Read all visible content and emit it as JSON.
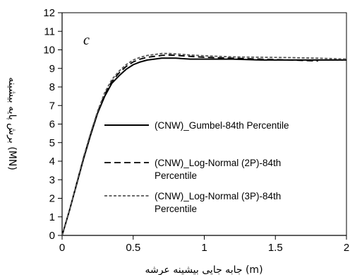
{
  "chart_data": {
    "type": "line",
    "title": "",
    "panel_label": "c",
    "xlabel": "جابه جایی بیشینه عرشه (m)",
    "ylabel": "برش پایه بیشینه (MN)",
    "xlim": [
      0,
      2
    ],
    "ylim": [
      0,
      12
    ],
    "x_ticks": [
      "0",
      "0.5",
      "1",
      "1.5",
      "2"
    ],
    "y_ticks": [
      "0",
      "1",
      "2",
      "3",
      "4",
      "5",
      "6",
      "7",
      "8",
      "9",
      "10",
      "11",
      "12"
    ],
    "grid": false,
    "legend_placement": "right-center",
    "series": [
      {
        "name": "(CNW)_Gumbel-84th Percentile",
        "name_lines": [
          "(CNW)_Gumbel-84th Percentile"
        ],
        "style": "solid",
        "color": "#000000",
        "x": [
          0,
          0.05,
          0.1,
          0.15,
          0.2,
          0.25,
          0.3,
          0.35,
          0.4,
          0.45,
          0.5,
          0.55,
          0.6,
          0.65,
          0.7,
          0.75,
          0.8,
          0.9,
          1.0,
          1.2,
          1.4,
          1.6,
          1.8,
          2.0
        ],
        "y": [
          0,
          1.3,
          2.7,
          4.1,
          5.4,
          6.6,
          7.5,
          8.2,
          8.6,
          8.95,
          9.2,
          9.35,
          9.45,
          9.5,
          9.55,
          9.55,
          9.55,
          9.5,
          9.5,
          9.5,
          9.45,
          9.45,
          9.45,
          9.45
        ]
      },
      {
        "name": "(CNW)_Log-Normal (2P)-84th Percentile",
        "name_lines": [
          "(CNW)_Log-Normal (2P)-84th",
          "Percentile"
        ],
        "style": "long-dash",
        "color": "#000000",
        "x": [
          0,
          0.05,
          0.1,
          0.15,
          0.2,
          0.25,
          0.3,
          0.35,
          0.4,
          0.45,
          0.5,
          0.55,
          0.6,
          0.65,
          0.7,
          0.75,
          0.8,
          0.9,
          1.0,
          1.2,
          1.4,
          1.6,
          1.8
        ],
        "y": [
          0,
          1.3,
          2.75,
          4.15,
          5.45,
          6.65,
          7.6,
          8.3,
          8.75,
          9.1,
          9.35,
          9.5,
          9.6,
          9.65,
          9.7,
          9.72,
          9.7,
          9.65,
          9.6,
          9.55,
          9.5,
          9.45,
          9.4
        ]
      },
      {
        "name": "(CNW)_Log-Normal (3P)-84th Percentile",
        "name_lines": [
          "(CNW)_Log-Normal (3P)-84th",
          "Percentile"
        ],
        "style": "short-dash",
        "color": "#555555",
        "x": [
          0,
          0.05,
          0.1,
          0.15,
          0.2,
          0.25,
          0.3,
          0.35,
          0.4,
          0.45,
          0.5,
          0.55,
          0.6,
          0.65,
          0.7,
          0.75,
          0.8,
          0.9,
          1.0,
          1.2,
          1.4,
          1.6,
          1.8,
          2.0
        ],
        "y": [
          0,
          1.3,
          2.75,
          4.2,
          5.5,
          6.7,
          7.7,
          8.4,
          8.85,
          9.2,
          9.45,
          9.6,
          9.7,
          9.75,
          9.8,
          9.8,
          9.78,
          9.72,
          9.68,
          9.62,
          9.6,
          9.58,
          9.55,
          9.5
        ]
      }
    ]
  }
}
